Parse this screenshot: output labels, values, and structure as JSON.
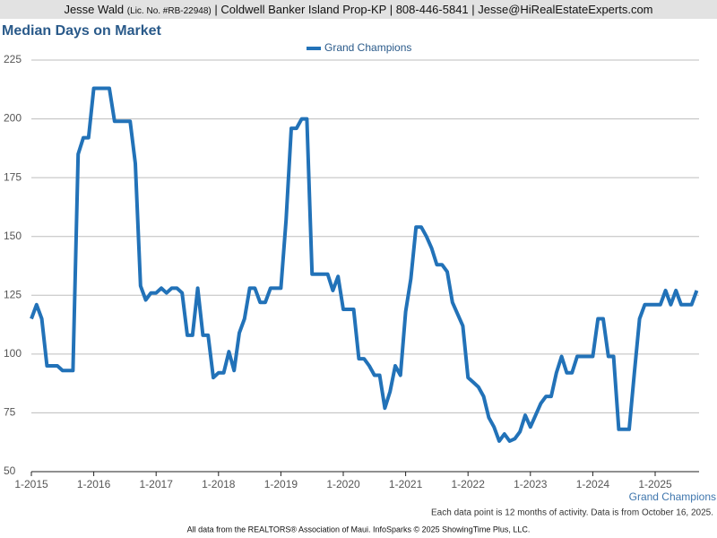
{
  "header": {
    "name": "Jesse Wald",
    "license": "(Lic. No. #RB-22948)",
    "details": "| Coldwell Banker Island Prop-KP | 808-446-5841 | Jesse@HiRealEstateExperts.com"
  },
  "chart_data": {
    "type": "line",
    "title": "Median Days on Market",
    "x_axis_label": "Grand Champions",
    "note": "Each data point is 12 months of activity. Data is from October 16, 2025.",
    "source": "All data from the REALTORS® Association of Maui. InfoSparks © 2025 ShowingTime Plus, LLC.",
    "categories": [
      "1-2015",
      null,
      null,
      null,
      null,
      null,
      null,
      null,
      null,
      null,
      null,
      null,
      "1-2016",
      null,
      null,
      null,
      null,
      null,
      null,
      null,
      null,
      null,
      null,
      null,
      "1-2017",
      null,
      null,
      null,
      null,
      null,
      null,
      null,
      null,
      null,
      null,
      null,
      "1-2018",
      null,
      null,
      null,
      null,
      null,
      null,
      null,
      null,
      null,
      null,
      null,
      "1-2019",
      null,
      null,
      null,
      null,
      null,
      null,
      null,
      null,
      null,
      null,
      null,
      "1-2020",
      null,
      null,
      null,
      null,
      null,
      null,
      null,
      null,
      null,
      null,
      null,
      "1-2021",
      null,
      null,
      null,
      null,
      null,
      null,
      null,
      null,
      null,
      null,
      null,
      "1-2022",
      null,
      null,
      null,
      null,
      null,
      null,
      null,
      null,
      null,
      null,
      null,
      "1-2023",
      null,
      null,
      null,
      null,
      null,
      null,
      null,
      null,
      null,
      null,
      null,
      "1-2024",
      null,
      null,
      null,
      null,
      null,
      null,
      null,
      null,
      null,
      null,
      null,
      "1-2025",
      null,
      null,
      null,
      null,
      null,
      null,
      null,
      null
    ],
    "series": [
      {
        "name": "Grand Champions",
        "color": "#2272b8",
        "values": [
          115,
          121,
          115,
          95,
          95,
          95,
          93,
          93,
          93,
          185,
          192,
          192,
          213,
          213,
          213,
          213,
          199,
          199,
          199,
          199,
          181,
          129,
          123,
          126,
          126,
          128,
          126,
          128,
          128,
          126,
          108,
          108,
          128,
          108,
          108,
          90,
          92,
          92,
          101,
          93,
          109,
          115,
          128,
          128,
          122,
          122,
          128,
          128,
          128,
          157,
          196,
          196,
          200,
          200,
          134,
          134,
          134,
          134,
          127,
          133,
          119,
          119,
          119,
          98,
          98,
          95,
          91,
          91,
          77,
          84,
          95,
          91,
          118,
          132,
          154,
          154,
          150,
          145,
          138,
          138,
          135,
          122,
          117,
          112,
          90,
          88,
          86,
          82,
          73,
          69,
          63,
          66,
          63,
          64,
          67,
          74,
          69,
          74,
          79,
          82,
          82,
          92,
          99,
          92,
          92,
          99,
          99,
          99,
          99,
          115,
          115,
          99,
          99,
          68,
          68,
          68,
          92,
          115,
          121,
          121,
          121,
          121,
          127,
          121,
          127,
          121,
          121,
          121,
          127
        ]
      }
    ],
    "ylim": [
      50,
      225
    ],
    "yticks": [
      50,
      75,
      100,
      125,
      150,
      175,
      200,
      225
    ],
    "grid": true,
    "legend": "top"
  }
}
